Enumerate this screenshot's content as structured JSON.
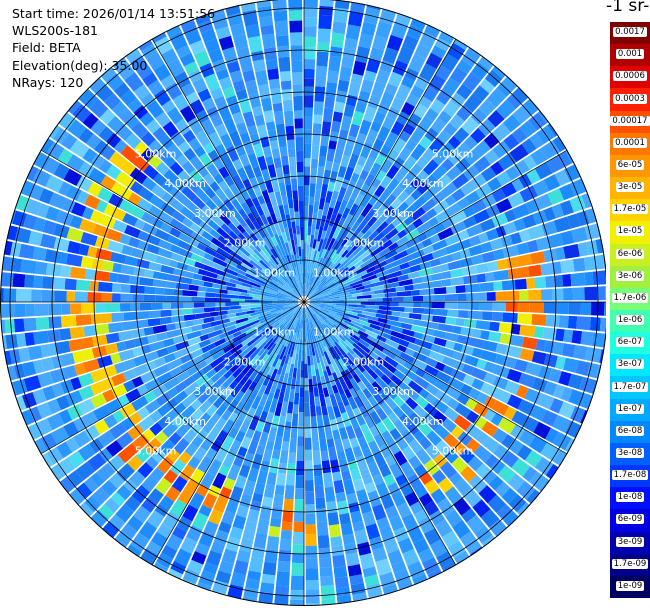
{
  "info": {
    "start_time": "Start time: 2026/01/14 13:51:56",
    "device": "WLS200s-181",
    "field": "Field: BETA",
    "elevation": "Elevation(deg): 35.00",
    "nrays": "NRays: 120"
  },
  "unit_label": "-1 sr-",
  "colorbar": {
    "labels": [
      "0.0017",
      "0.001",
      "0.0006",
      "0.0003",
      "0.00017",
      "0.0001",
      "6e-05",
      "3e-05",
      "1.7e-05",
      "1e-05",
      "6e-06",
      "3e-06",
      "1.7e-06",
      "1e-06",
      "6e-07",
      "3e-07",
      "1.7e-07",
      "1e-07",
      "6e-08",
      "3e-08",
      "1.7e-08",
      "1e-08",
      "6e-09",
      "3e-09",
      "1.7e-09",
      "1e-09"
    ],
    "colors": [
      "#800000",
      "#b00000",
      "#e00000",
      "#ff2000",
      "#ff5000",
      "#ff7800",
      "#ff9800",
      "#ffb400",
      "#ffd200",
      "#f0f000",
      "#c8f020",
      "#a0f040",
      "#78ff78",
      "#40ffb0",
      "#20ffe0",
      "#00e8ff",
      "#00c8ff",
      "#00a8ff",
      "#0088ff",
      "#0060ff",
      "#0038ff",
      "#0010ff",
      "#0000e0",
      "#0000b0",
      "#000088",
      "#000060"
    ]
  },
  "range_rings": {
    "labels": [
      "1.00km",
      "2.00km",
      "3.00km",
      "4.00km",
      "5.00km"
    ]
  }
}
